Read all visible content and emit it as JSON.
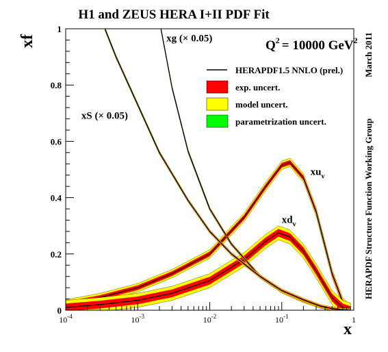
{
  "chart_data": {
    "type": "line",
    "title": "H1 and ZEUS HERA I+II PDF Fit",
    "scale_label": "Q",
    "scale_value": "= 10000 GeV",
    "xlabel": "x",
    "ylabel": "xf",
    "side_label_top": "March 2011",
    "side_label_bottom": "HERAPDF Structure Function Working Group",
    "x_scale": "log",
    "xlim": [
      0.0001,
      1
    ],
    "ylim": [
      0,
      1
    ],
    "x_ticks": [
      {
        "base": "10",
        "exp": "-4",
        "value": 0.0001
      },
      {
        "base": "10",
        "exp": "-3",
        "value": 0.001
      },
      {
        "base": "10",
        "exp": "-2",
        "value": 0.01
      },
      {
        "base": "10",
        "exp": "-1",
        "value": 0.1
      },
      {
        "base": "1",
        "exp": "",
        "value": 1
      }
    ],
    "y_ticks": [
      "0",
      "0.2",
      "0.4",
      "0.6",
      "0.8",
      "1"
    ],
    "y_tick_values": [
      0,
      0.2,
      0.4,
      0.6,
      0.8,
      1
    ],
    "legend": {
      "placement": "top-right",
      "items": [
        {
          "label": "HERAPDF1.5 NNLO (prel.)",
          "kind": "line",
          "color": "#000000"
        },
        {
          "label": "exp. uncert.",
          "kind": "box",
          "color": "#ff0000"
        },
        {
          "label": "model uncert.",
          "kind": "box",
          "color": "#ffff00"
        },
        {
          "label": "parametrization uncert.",
          "kind": "box",
          "color": "#00ff00"
        }
      ]
    },
    "series": [
      {
        "name": "xu",
        "label_sub": "v",
        "x": [
          0.0001,
          0.0003,
          0.001,
          0.003,
          0.01,
          0.03,
          0.06,
          0.1,
          0.13,
          0.2,
          0.3,
          0.5,
          0.7,
          0.9
        ],
        "y": [
          0.022,
          0.045,
          0.08,
          0.13,
          0.2,
          0.33,
          0.44,
          0.515,
          0.525,
          0.47,
          0.35,
          0.13,
          0.03,
          0.002
        ],
        "band": 0.015,
        "label_pos": {
          "x": 0.25,
          "y": 0.48
        }
      },
      {
        "name": "xd",
        "label_sub": "v",
        "x": [
          0.0001,
          0.0003,
          0.001,
          0.003,
          0.01,
          0.03,
          0.06,
          0.09,
          0.13,
          0.2,
          0.3,
          0.5,
          0.7,
          0.9
        ],
        "y": [
          0.01,
          0.02,
          0.035,
          0.06,
          0.105,
          0.18,
          0.245,
          0.275,
          0.26,
          0.21,
          0.14,
          0.045,
          0.01,
          0.0005
        ],
        "band": 0.025,
        "label_pos": {
          "x": 0.1,
          "y": 0.31
        }
      },
      {
        "name": "xg (× 0.05)",
        "label_sub": "",
        "x": [
          0.0021,
          0.003,
          0.005,
          0.01,
          0.02,
          0.05,
          0.1,
          0.2,
          0.35,
          0.5,
          0.7,
          0.9
        ],
        "y": [
          1.0,
          0.79,
          0.565,
          0.36,
          0.235,
          0.12,
          0.067,
          0.033,
          0.012,
          0.005,
          0.001,
          0.0001
        ],
        "band": 0.006,
        "label_pos": {
          "x": 0.0025,
          "y": 0.955
        }
      },
      {
        "name": "xS (× 0.05)",
        "label_sub": "",
        "x": [
          0.00035,
          0.0005,
          0.001,
          0.002,
          0.005,
          0.01,
          0.02,
          0.05,
          0.1,
          0.2,
          0.35,
          0.5,
          0.7,
          0.9
        ],
        "y": [
          1.0,
          0.9,
          0.73,
          0.56,
          0.39,
          0.28,
          0.2,
          0.12,
          0.07,
          0.037,
          0.014,
          0.006,
          0.001,
          0.0001
        ],
        "band": 0.006,
        "label_pos": {
          "x": 0.000165,
          "y": 0.68
        }
      }
    ]
  }
}
